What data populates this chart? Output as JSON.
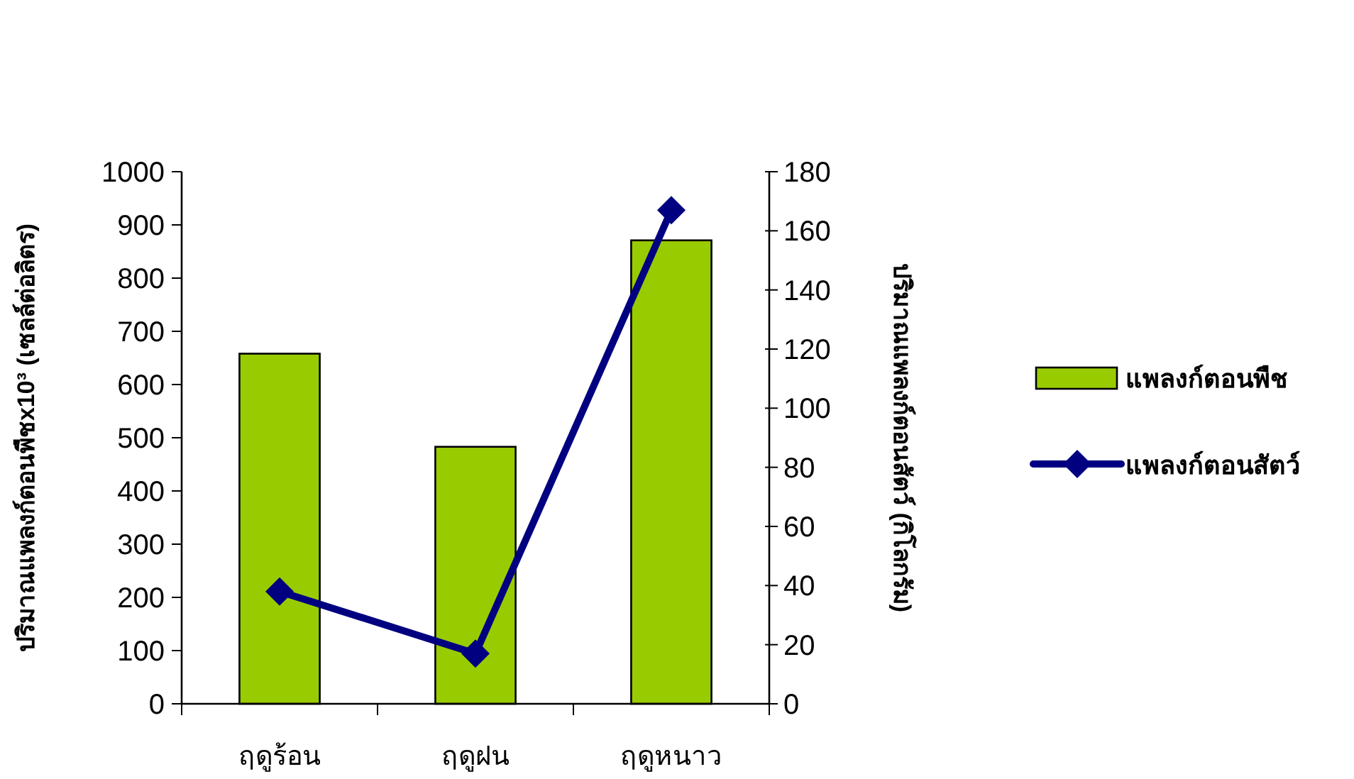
{
  "chart_data": {
    "type": "bar",
    "categories": [
      "ฤดูร้อน",
      "ฤดูฝน",
      "ฤดูหนาว"
    ],
    "ylabel": "ปริมาณแพลงก์ตอนพืชx10³ (เซลล์ต่อลิตร)",
    "y2label": "ปริมาณแพลงก์ตอนสัตว์ (กิโลกรัม)",
    "ylim": [
      0,
      1000
    ],
    "yticks": [
      0,
      100,
      200,
      300,
      400,
      500,
      600,
      700,
      800,
      900,
      1000
    ],
    "y2lim": [
      0,
      180
    ],
    "y2ticks": [
      0,
      20,
      40,
      60,
      80,
      100,
      120,
      140,
      160,
      180
    ],
    "grid": false,
    "legend": "right",
    "series": [
      {
        "name": "แพลงก์ตอนพืช",
        "color": "#99cc00",
        "values": [
          658,
          483,
          871
        ]
      },
      {
        "name": "แพลงก์ตอนสัตว์",
        "type": "line",
        "axis": "y2",
        "color": "#000080",
        "marker": "diamond",
        "line_style": "solid",
        "values": [
          38,
          17,
          167
        ]
      }
    ]
  }
}
